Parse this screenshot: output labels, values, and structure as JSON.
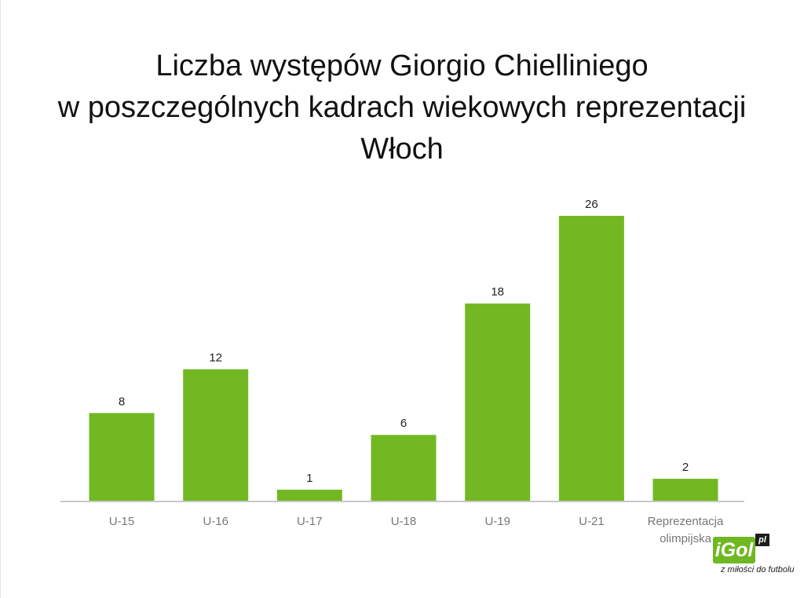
{
  "chart_data": {
    "type": "bar",
    "title_lines": [
      "Liczba występów Giorgio Chielliniego",
      "w poszczególnych kadrach wiekowych reprezentacji",
      "Włoch"
    ],
    "categories": [
      [
        "U-15"
      ],
      [
        "U-16"
      ],
      [
        "U-17"
      ],
      [
        "U-18"
      ],
      [
        "U-19"
      ],
      [
        "U-21"
      ],
      [
        "Reprezentacja",
        "olimpijska"
      ]
    ],
    "values": [
      8,
      12,
      1,
      6,
      18,
      26,
      2
    ],
    "ylim": [
      0,
      26
    ],
    "grid": false,
    "bar_color": "#72b823",
    "axis_color": "#c8c8c8"
  },
  "logo": {
    "brand": "iGol",
    "suffix": "pl",
    "tagline": "z miłości do futbolu",
    "color": "#6fb823"
  }
}
